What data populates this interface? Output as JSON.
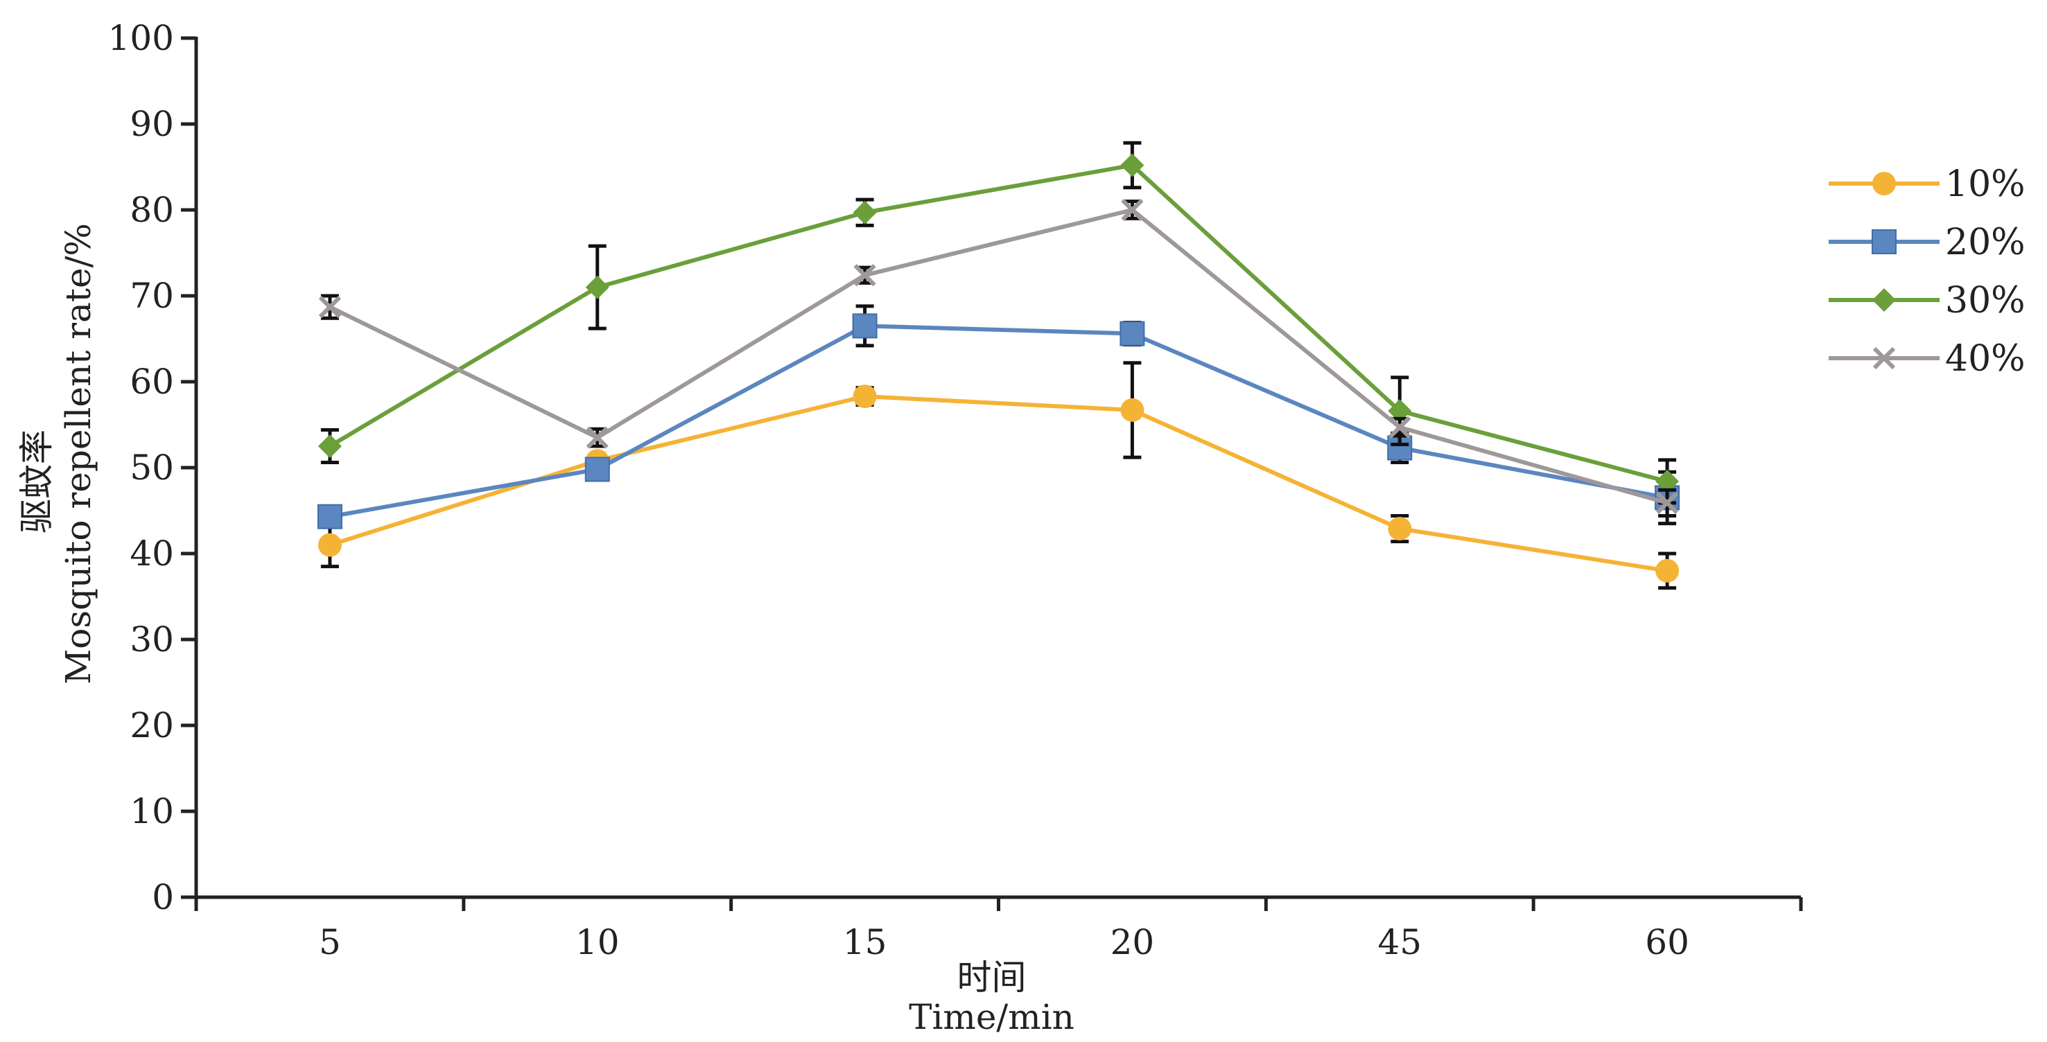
{
  "chart_data": {
    "type": "line",
    "title": "",
    "categories": [
      "5",
      "10",
      "15",
      "20",
      "45",
      "60"
    ],
    "series": [
      {
        "name": "10%",
        "color": "#F5B335",
        "marker": "circle",
        "values": [
          41,
          50.8,
          58.3,
          56.7,
          42.9,
          38
        ],
        "errors": [
          2.5,
          0,
          1,
          5.5,
          1.5,
          2
        ]
      },
      {
        "name": "20%",
        "color": "#5B86BF",
        "marker": "square",
        "values": [
          44.3,
          49.8,
          66.5,
          65.6,
          52.3,
          46.5
        ],
        "errors": [
          0.5,
          1,
          2.3,
          1.3,
          1.7,
          3
        ]
      },
      {
        "name": "30%",
        "color": "#6A9F3A",
        "marker": "diamond",
        "values": [
          52.5,
          71,
          79.7,
          85.2,
          56.6,
          48.4
        ],
        "errors": [
          1.9,
          4.8,
          1.5,
          2.6,
          3.9,
          2.5
        ]
      },
      {
        "name": "40%",
        "color": "#9E9898",
        "marker": "x",
        "values": [
          68.7,
          53.5,
          72.4,
          80,
          54.7,
          45.9
        ],
        "errors": [
          1.3,
          1,
          0.9,
          1,
          1,
          1.5
        ]
      }
    ],
    "xlabel_cn": "时间",
    "xlabel": "Time/min",
    "ylabel_cn": "驱蚊率",
    "ylabel": "Mosquito repellent rate/%",
    "ylim": [
      0,
      100
    ],
    "yticks": [
      0,
      10,
      20,
      30,
      40,
      50,
      60,
      70,
      80,
      90,
      100
    ],
    "legend_position": "right"
  }
}
